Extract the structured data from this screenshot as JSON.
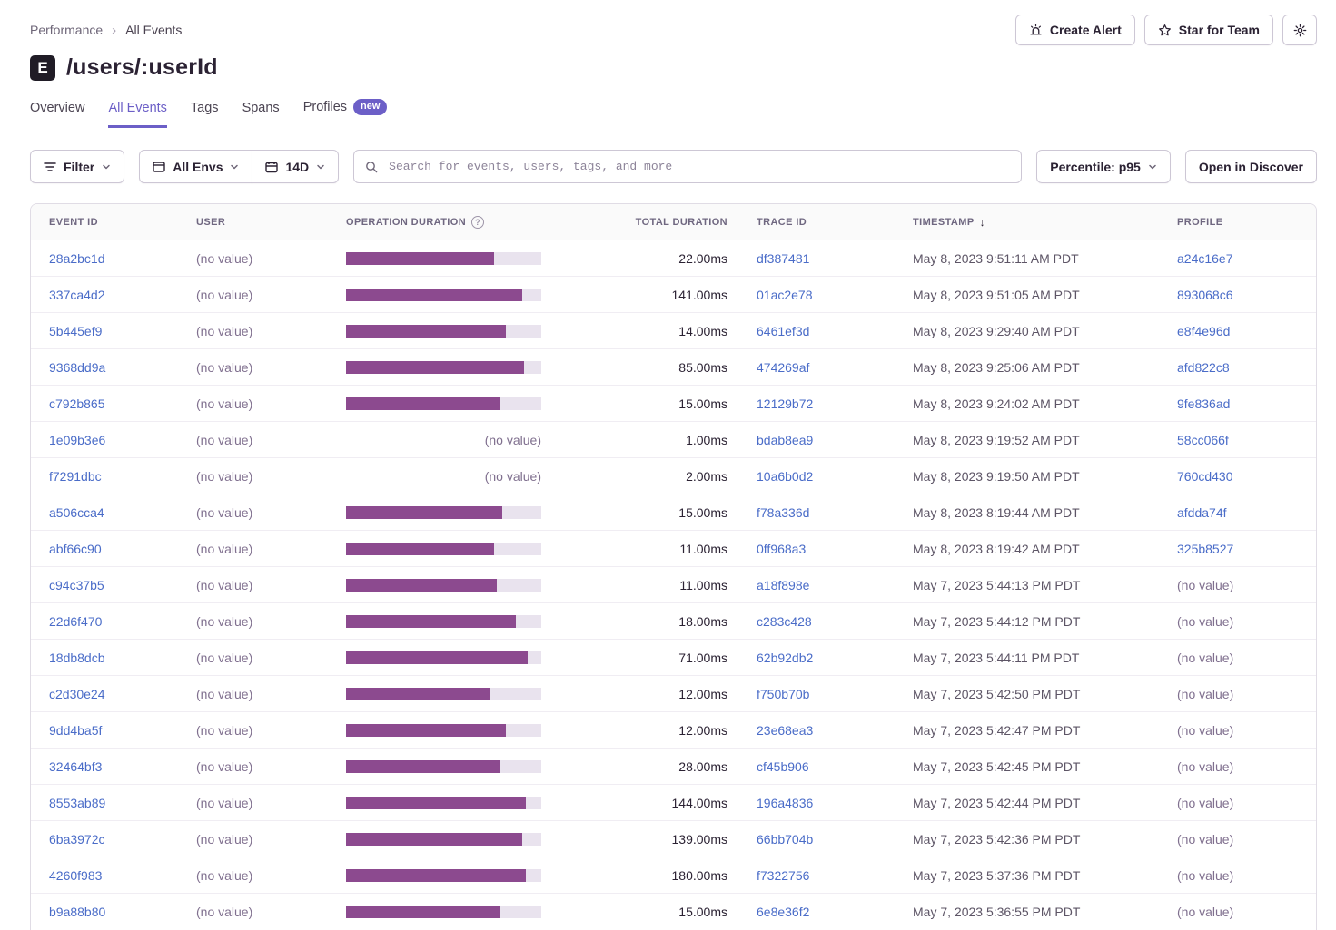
{
  "breadcrumb": {
    "items": [
      "Performance",
      "All Events"
    ]
  },
  "header": {
    "project_icon_letter": "E",
    "title": "/users/:userId",
    "actions": {
      "create_alert": "Create Alert",
      "star_for_team": "Star for Team"
    }
  },
  "tabs": [
    {
      "label": "Overview",
      "active": false
    },
    {
      "label": "All Events",
      "active": true
    },
    {
      "label": "Tags",
      "active": false
    },
    {
      "label": "Spans",
      "active": false
    },
    {
      "label": "Profiles",
      "active": false,
      "badge": "new"
    }
  ],
  "toolbar": {
    "filter_label": "Filter",
    "env_label": "All Envs",
    "date_label": "14D",
    "search_placeholder": "Search for events, users, tags, and more",
    "percentile_label": "Percentile: p95",
    "discover_label": "Open in Discover"
  },
  "icons": {
    "breadcrumb_separator": "›",
    "sort_descending": "↓",
    "info": "?"
  },
  "colors": {
    "accent_purple": "#6C5FC7",
    "link_blue": "#4a6cc8",
    "bar_fill": "#8c4a8f",
    "bar_track": "#e9e3ee",
    "text_primary": "#2b2233",
    "text_muted": "#80708f",
    "border": "#e0dce5",
    "header_bg": "#fafafa"
  },
  "table": {
    "columns": [
      "EVENT ID",
      "USER",
      "OPERATION DURATION",
      "TOTAL DURATION",
      "TRACE ID",
      "TIMESTAMP",
      "PROFILE"
    ],
    "no_value_label": "(no value)",
    "rows": [
      {
        "event_id": "28a2bc1d",
        "user": "(no value)",
        "op_duration_pct": 76,
        "total_duration": "22.00ms",
        "trace_id": "df387481",
        "timestamp": "May 8, 2023 9:51:11 AM PDT",
        "profile": "a24c16e7",
        "profile_is_link": true
      },
      {
        "event_id": "337ca4d2",
        "user": "(no value)",
        "op_duration_pct": 90,
        "total_duration": "141.00ms",
        "trace_id": "01ac2e78",
        "timestamp": "May 8, 2023 9:51:05 AM PDT",
        "profile": "893068c6",
        "profile_is_link": true
      },
      {
        "event_id": "5b445ef9",
        "user": "(no value)",
        "op_duration_pct": 82,
        "total_duration": "14.00ms",
        "trace_id": "6461ef3d",
        "timestamp": "May 8, 2023 9:29:40 AM PDT",
        "profile": "e8f4e96d",
        "profile_is_link": true
      },
      {
        "event_id": "9368dd9a",
        "user": "(no value)",
        "op_duration_pct": 91,
        "total_duration": "85.00ms",
        "trace_id": "474269af",
        "timestamp": "May 8, 2023 9:25:06 AM PDT",
        "profile": "afd822c8",
        "profile_is_link": true
      },
      {
        "event_id": "c792b865",
        "user": "(no value)",
        "op_duration_pct": 79,
        "total_duration": "15.00ms",
        "trace_id": "12129b72",
        "timestamp": "May 8, 2023 9:24:02 AM PDT",
        "profile": "9fe836ad",
        "profile_is_link": true
      },
      {
        "event_id": "1e09b3e6",
        "user": "(no value)",
        "op_duration_pct": null,
        "total_duration": "1.00ms",
        "trace_id": "bdab8ea9",
        "timestamp": "May 8, 2023 9:19:52 AM PDT",
        "profile": "58cc066f",
        "profile_is_link": true
      },
      {
        "event_id": "f7291dbc",
        "user": "(no value)",
        "op_duration_pct": null,
        "total_duration": "2.00ms",
        "trace_id": "10a6b0d2",
        "timestamp": "May 8, 2023 9:19:50 AM PDT",
        "profile": "760cd430",
        "profile_is_link": true
      },
      {
        "event_id": "a506cca4",
        "user": "(no value)",
        "op_duration_pct": 80,
        "total_duration": "15.00ms",
        "trace_id": "f78a336d",
        "timestamp": "May 8, 2023 8:19:44 AM PDT",
        "profile": "afdda74f",
        "profile_is_link": true
      },
      {
        "event_id": "abf66c90",
        "user": "(no value)",
        "op_duration_pct": 76,
        "total_duration": "11.00ms",
        "trace_id": "0ff968a3",
        "timestamp": "May 8, 2023 8:19:42 AM PDT",
        "profile": "325b8527",
        "profile_is_link": true
      },
      {
        "event_id": "c94c37b5",
        "user": "(no value)",
        "op_duration_pct": 77,
        "total_duration": "11.00ms",
        "trace_id": "a18f898e",
        "timestamp": "May 7, 2023 5:44:13 PM PDT",
        "profile": "(no value)",
        "profile_is_link": false
      },
      {
        "event_id": "22d6f470",
        "user": "(no value)",
        "op_duration_pct": 87,
        "total_duration": "18.00ms",
        "trace_id": "c283c428",
        "timestamp": "May 7, 2023 5:44:12 PM PDT",
        "profile": "(no value)",
        "profile_is_link": false
      },
      {
        "event_id": "18db8dcb",
        "user": "(no value)",
        "op_duration_pct": 93,
        "total_duration": "71.00ms",
        "trace_id": "62b92db2",
        "timestamp": "May 7, 2023 5:44:11 PM PDT",
        "profile": "(no value)",
        "profile_is_link": false
      },
      {
        "event_id": "c2d30e24",
        "user": "(no value)",
        "op_duration_pct": 74,
        "total_duration": "12.00ms",
        "trace_id": "f750b70b",
        "timestamp": "May 7, 2023 5:42:50 PM PDT",
        "profile": "(no value)",
        "profile_is_link": false
      },
      {
        "event_id": "9dd4ba5f",
        "user": "(no value)",
        "op_duration_pct": 82,
        "total_duration": "12.00ms",
        "trace_id": "23e68ea3",
        "timestamp": "May 7, 2023 5:42:47 PM PDT",
        "profile": "(no value)",
        "profile_is_link": false
      },
      {
        "event_id": "32464bf3",
        "user": "(no value)",
        "op_duration_pct": 79,
        "total_duration": "28.00ms",
        "trace_id": "cf45b906",
        "timestamp": "May 7, 2023 5:42:45 PM PDT",
        "profile": "(no value)",
        "profile_is_link": false
      },
      {
        "event_id": "8553ab89",
        "user": "(no value)",
        "op_duration_pct": 92,
        "total_duration": "144.00ms",
        "trace_id": "196a4836",
        "timestamp": "May 7, 2023 5:42:44 PM PDT",
        "profile": "(no value)",
        "profile_is_link": false
      },
      {
        "event_id": "6ba3972c",
        "user": "(no value)",
        "op_duration_pct": 90,
        "total_duration": "139.00ms",
        "trace_id": "66bb704b",
        "timestamp": "May 7, 2023 5:42:36 PM PDT",
        "profile": "(no value)",
        "profile_is_link": false
      },
      {
        "event_id": "4260f983",
        "user": "(no value)",
        "op_duration_pct": 92,
        "total_duration": "180.00ms",
        "trace_id": "f7322756",
        "timestamp": "May 7, 2023 5:37:36 PM PDT",
        "profile": "(no value)",
        "profile_is_link": false
      },
      {
        "event_id": "b9a88b80",
        "user": "(no value)",
        "op_duration_pct": 79,
        "total_duration": "15.00ms",
        "trace_id": "6e8e36f2",
        "timestamp": "May 7, 2023 5:36:55 PM PDT",
        "profile": "(no value)",
        "profile_is_link": false
      }
    ]
  }
}
